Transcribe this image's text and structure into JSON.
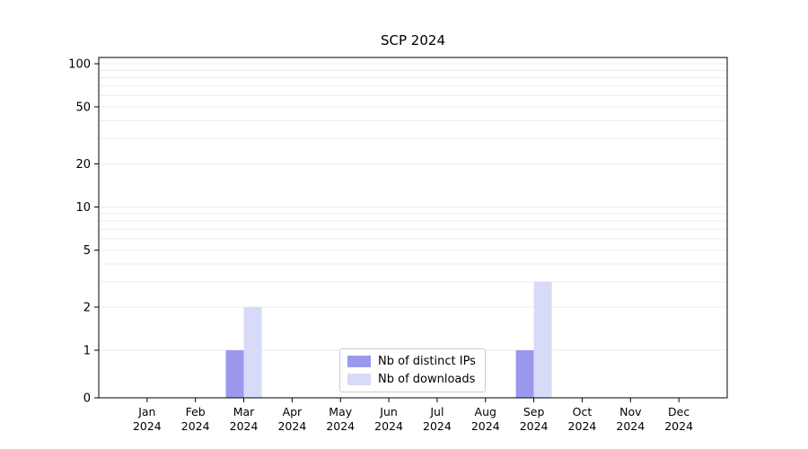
{
  "chart_data": {
    "type": "bar",
    "title": "SCP 2024",
    "categories": [
      "Jan",
      "Feb",
      "Mar",
      "Apr",
      "May",
      "Jun",
      "Jul",
      "Aug",
      "Sep",
      "Oct",
      "Nov",
      "Dec"
    ],
    "x_tick_year": "2024",
    "series": [
      {
        "name": "Nb of distinct IPs",
        "color": "#9a99ee",
        "values": [
          0,
          0,
          1,
          0,
          0,
          0,
          0,
          0,
          1,
          0,
          0,
          0
        ]
      },
      {
        "name": "Nb of downloads",
        "color": "#d7dbf8",
        "values": [
          0,
          0,
          2,
          0,
          0,
          0,
          0,
          0,
          3,
          0,
          0,
          0
        ]
      }
    ],
    "yscale": "symlog",
    "yticks": [
      0,
      1,
      2,
      5,
      10,
      20,
      50,
      100
    ],
    "ylim": [
      0,
      110
    ],
    "grid": "horizontal, light gray, major and log-minor lines",
    "legend_position": "lower center inside plot",
    "colors": {
      "axis": "#000000",
      "grid_line": "#ebebeb",
      "tick_label": "#000000",
      "background": "#ffffff"
    }
  }
}
